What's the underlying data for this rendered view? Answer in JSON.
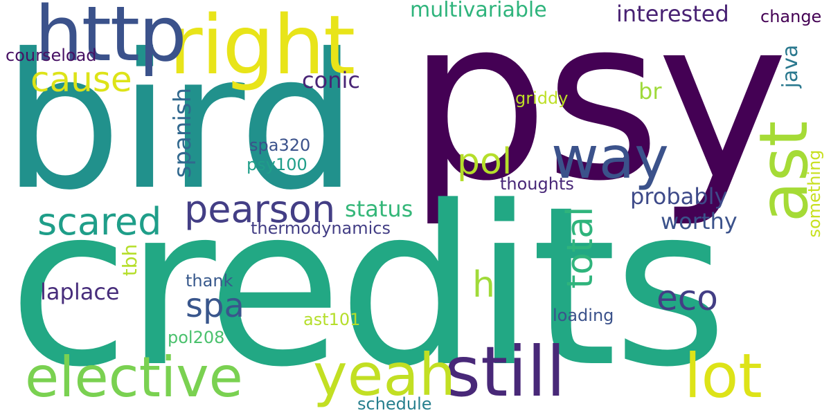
{
  "words": [
    {
      "text": "psy",
      "color": "#440154"
    },
    {
      "text": "credits",
      "color": "#22a884"
    },
    {
      "text": "bird",
      "color": "#21918c"
    },
    {
      "text": "right",
      "color": "#e8e419"
    },
    {
      "text": "http",
      "color": "#3b528b"
    },
    {
      "text": "way",
      "color": "#3b528b"
    },
    {
      "text": "ast",
      "color": "#a5db36"
    },
    {
      "text": "still",
      "color": "#482878"
    },
    {
      "text": "lot",
      "color": "#dde318"
    },
    {
      "text": "yeah",
      "color": "#c2df23"
    },
    {
      "text": "elective",
      "color": "#7ad151"
    },
    {
      "text": "pearson",
      "color": "#433e85"
    },
    {
      "text": "scared",
      "color": "#1f9e89"
    },
    {
      "text": "cause",
      "color": "#dde318"
    },
    {
      "text": "spa",
      "color": "#39568c"
    },
    {
      "text": "total",
      "color": "#2fb47c"
    },
    {
      "text": "pol",
      "color": "#b5de2b"
    },
    {
      "text": "eco",
      "color": "#433e85"
    },
    {
      "text": "h",
      "color": "#a0da39"
    },
    {
      "text": "spanish",
      "color": "#31688e"
    },
    {
      "text": "multivariable",
      "color": "#2fb47c"
    },
    {
      "text": "interested",
      "color": "#482173"
    },
    {
      "text": "conic",
      "color": "#482475"
    },
    {
      "text": "probably",
      "color": "#3e4a89"
    },
    {
      "text": "worthy",
      "color": "#3b528b"
    },
    {
      "text": "status",
      "color": "#35b779"
    },
    {
      "text": "laplace",
      "color": "#472d7b"
    },
    {
      "text": "java",
      "color": "#2a788e"
    },
    {
      "text": "br",
      "color": "#9fda3a"
    },
    {
      "text": "tbh",
      "color": "#b5de2b"
    },
    {
      "text": "courseload",
      "color": "#471164"
    },
    {
      "text": "change",
      "color": "#440154"
    },
    {
      "text": "griddy",
      "color": "#bddf26"
    },
    {
      "text": "something",
      "color": "#c8e020"
    },
    {
      "text": "spa320",
      "color": "#3b528b"
    },
    {
      "text": "psy100",
      "color": "#1f9e89"
    },
    {
      "text": "thoughts",
      "color": "#482878"
    },
    {
      "text": "thermodynamics",
      "color": "#433e85"
    },
    {
      "text": "thank",
      "color": "#38598c"
    },
    {
      "text": "loading",
      "color": "#3b528b"
    },
    {
      "text": "ast101",
      "color": "#b5de2b"
    },
    {
      "text": "pol208",
      "color": "#4ac16d"
    },
    {
      "text": "schedule",
      "color": "#277f8e"
    }
  ]
}
